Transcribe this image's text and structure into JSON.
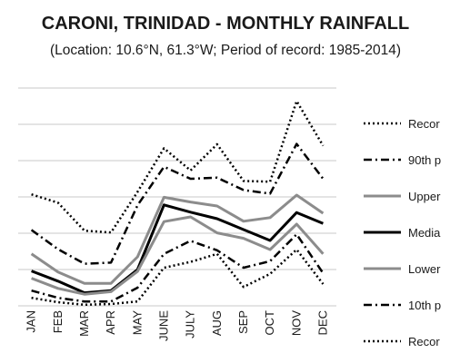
{
  "chart_data": {
    "type": "line",
    "title": "CARONI, TRINIDAD - MONTHLY RAINFALL",
    "subtitle": "(Location: 10.6°N, 61.3°W; Period of record: 1985-2014)",
    "categories": [
      "JAN",
      "FEB",
      "MAR",
      "APR",
      "MAY",
      "JUNE",
      "JULY",
      "AUG",
      "SEP",
      "OCT",
      "NOV",
      "DEC"
    ],
    "ylim": [
      0,
      600
    ],
    "grid": true,
    "legend_position": "right",
    "series": [
      {
        "name": "Recor",
        "style": "dotted",
        "color": "#000000",
        "values": [
          307,
          284,
          207,
          202,
          314,
          434,
          373,
          445,
          344,
          342,
          564,
          441
        ]
      },
      {
        "name": "90th p",
        "style": "dashdot",
        "color": "#000000",
        "values": [
          209,
          156,
          116,
          119,
          277,
          383,
          350,
          353,
          319,
          309,
          446,
          350
        ]
      },
      {
        "name": "Upper",
        "style": "solid",
        "color": "#8c8c8c",
        "values": [
          143,
          93,
          62,
          62,
          135,
          299,
          286,
          275,
          233,
          243,
          305,
          255
        ]
      },
      {
        "name": "Media",
        "style": "solid",
        "color": "#000000",
        "values": [
          96,
          68,
          36,
          42,
          100,
          278,
          258,
          240,
          210,
          180,
          257,
          227
        ]
      },
      {
        "name": "Lower",
        "style": "solid",
        "color": "#8c8c8c",
        "values": [
          76,
          48,
          32,
          39,
          95,
          232,
          245,
          201,
          186,
          155,
          225,
          143
        ]
      },
      {
        "name": "10th p",
        "style": "dashdot",
        "color": "#000000",
        "values": [
          42,
          22,
          12,
          12,
          50,
          143,
          179,
          153,
          105,
          123,
          197,
          90
        ]
      },
      {
        "name": "Recor",
        "style": "dotted",
        "color": "#000000",
        "values": [
          22,
          10,
          3,
          5,
          12,
          105,
          121,
          143,
          52,
          88,
          155,
          60
        ]
      }
    ]
  }
}
